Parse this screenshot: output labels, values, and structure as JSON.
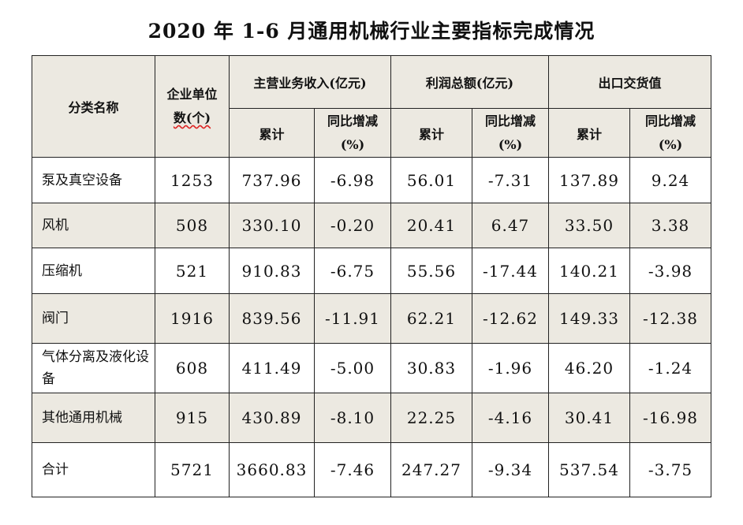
{
  "title": "2020 年 1-6 月通用机械行业主要指标完成情况",
  "header": {
    "category": "分类名称",
    "units_line1": "企业单位",
    "units_line2": "数(个)",
    "revenue": "主营业务收入(亿元)",
    "profit": "利润总额(亿元)",
    "export": "出口交货值",
    "cumulative": "累计",
    "yoy_line1": "同比增减",
    "yoy_line2": "(%)"
  },
  "rows": [
    {
      "name": "泵及真空设备",
      "units": "1253",
      "rev": "737.96",
      "rev_yoy": "-6.98",
      "profit": "56.01",
      "profit_yoy": "-7.31",
      "export": "137.89",
      "export_yoy": "9.24"
    },
    {
      "name": "风机",
      "units": "508",
      "rev": "330.10",
      "rev_yoy": "-0.20",
      "profit": "20.41",
      "profit_yoy": "6.47",
      "export": "33.50",
      "export_yoy": "3.38"
    },
    {
      "name": "压缩机",
      "units": "521",
      "rev": "910.83",
      "rev_yoy": "-6.75",
      "profit": "55.56",
      "profit_yoy": "-17.44",
      "export": "140.21",
      "export_yoy": "-3.98"
    },
    {
      "name": "阀门",
      "units": "1916",
      "rev": "839.56",
      "rev_yoy": "-11.91",
      "profit": "62.21",
      "profit_yoy": "-12.62",
      "export": "149.33",
      "export_yoy": "-12.38"
    },
    {
      "name": "气体分离及液化设备",
      "units": "608",
      "rev": "411.49",
      "rev_yoy": "-5.00",
      "profit": "30.83",
      "profit_yoy": "-1.96",
      "export": "46.20",
      "export_yoy": "-1.24"
    },
    {
      "name": "其他通用机械",
      "units": "915",
      "rev": "430.89",
      "rev_yoy": "-8.10",
      "profit": "22.25",
      "profit_yoy": "-4.16",
      "export": "30.41",
      "export_yoy": "-16.98"
    },
    {
      "name": "合计",
      "units": "5721",
      "rev": "3660.83",
      "rev_yoy": "-7.46",
      "profit": "247.27",
      "profit_yoy": "-9.34",
      "export": "537.54",
      "export_yoy": "-3.75"
    }
  ]
}
